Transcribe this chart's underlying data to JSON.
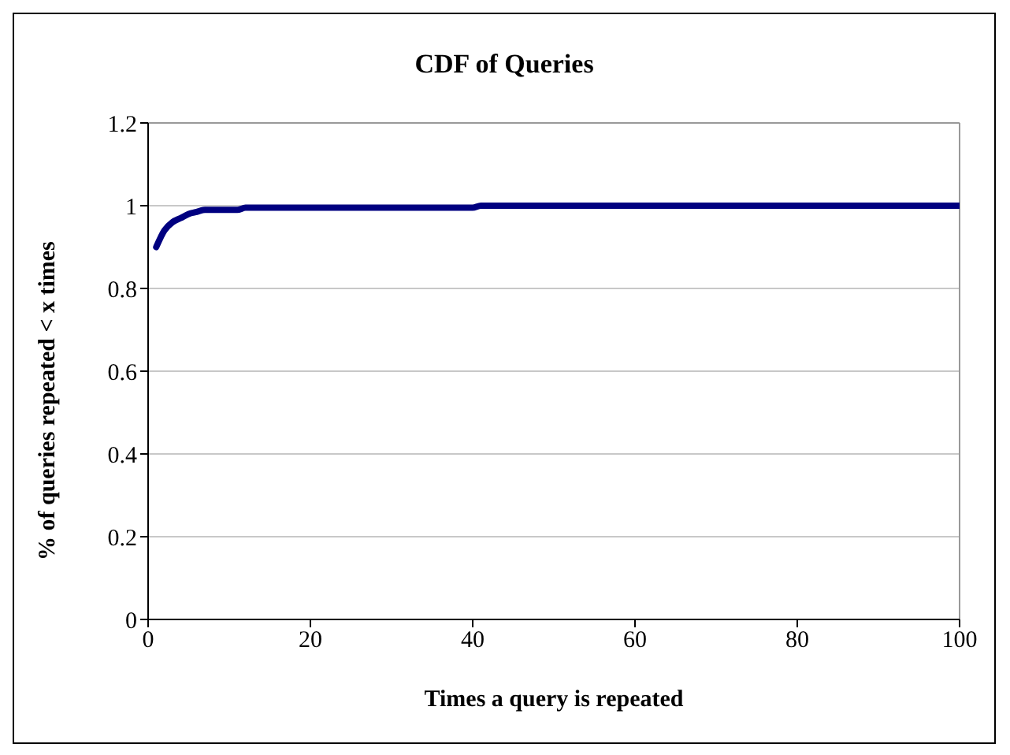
{
  "chart_data": {
    "type": "line",
    "title": "CDF of Queries",
    "xlabel": "Times a query is repeated",
    "ylabel": "% of queries repeated < x times",
    "x": [
      1,
      2,
      3,
      4,
      5,
      6,
      7,
      11,
      12,
      40,
      41,
      100
    ],
    "series": [
      {
        "color": "#000080",
        "values": [
          0.9,
          0.94,
          0.96,
          0.97,
          0.98,
          0.985,
          0.99,
          0.99,
          0.995,
          0.995,
          1,
          1
        ]
      }
    ],
    "xlim": [
      0,
      100
    ],
    "xticks": [
      0,
      20,
      40,
      60,
      80,
      100
    ],
    "ylim": [
      0,
      1.2
    ],
    "yticks": [
      0,
      0.2,
      0.4,
      0.6,
      0.8,
      1,
      1.2
    ],
    "grid": "y",
    "marker": "none",
    "line_style": "solid"
  }
}
